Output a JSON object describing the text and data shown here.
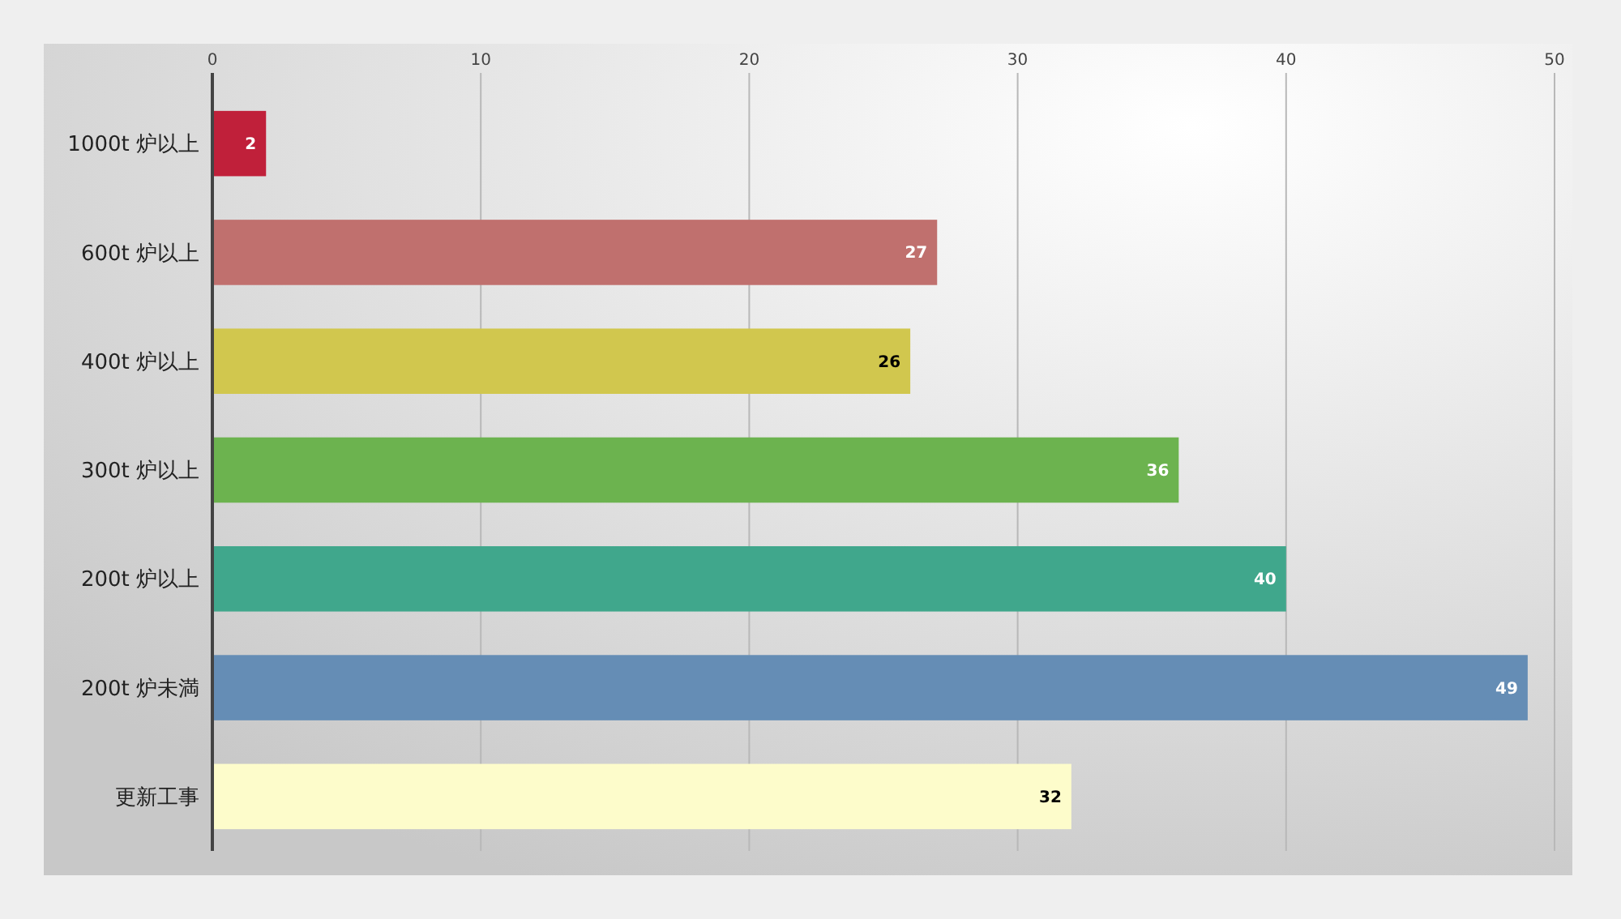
{
  "chart_data": {
    "type": "bar",
    "orientation": "horizontal",
    "categories": [
      "1000t 炉以上",
      "600t 炉以上",
      "400t 炉以上",
      "300t 炉以上",
      "200t 炉以上",
      "200t 炉未満",
      "更新工事"
    ],
    "values": [
      2,
      27,
      26,
      36,
      40,
      49,
      32
    ],
    "colors": [
      "#c0203a",
      "#c0706e",
      "#d1c74e",
      "#6cb34f",
      "#40a78c",
      "#658db5",
      "#fdfccb"
    ],
    "xlim": [
      0,
      50
    ],
    "xticks": [
      0,
      10,
      20,
      30,
      40,
      50
    ],
    "grid": "x",
    "data_labels": true
  }
}
